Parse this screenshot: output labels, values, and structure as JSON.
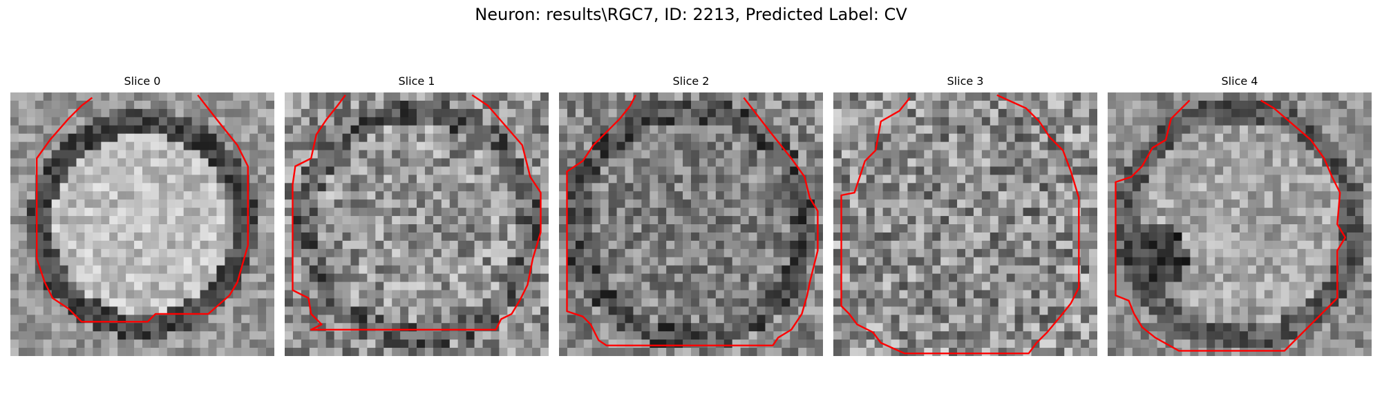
{
  "figure": {
    "title": "Neuron: results\\RGC7, ID: 2213, Predicted Label: CV"
  },
  "slices": [
    {
      "title": "Slice 0"
    },
    {
      "title": "Slice 1"
    },
    {
      "title": "Slice 2"
    },
    {
      "title": "Slice 3"
    },
    {
      "title": "Slice 4"
    }
  ],
  "colors": {
    "contour": "#ff0000",
    "background": "#ffffff"
  }
}
